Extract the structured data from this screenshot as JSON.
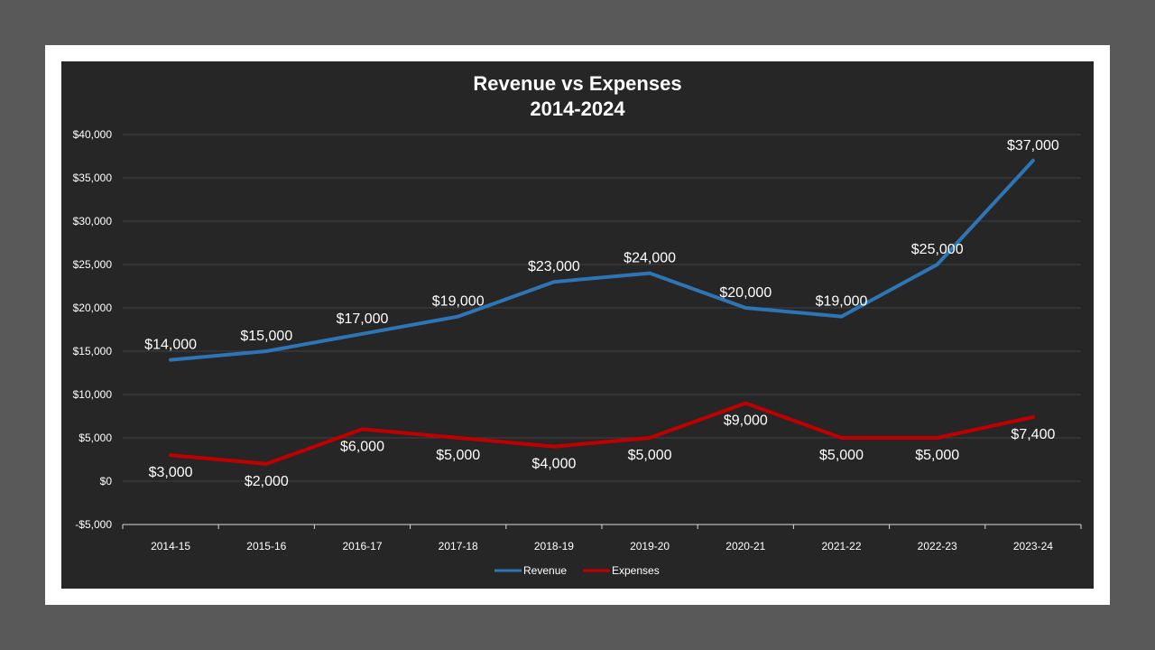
{
  "chart_data": {
    "type": "line",
    "title": [
      "Revenue vs Expenses",
      "2014-2024"
    ],
    "categories": [
      "2014-15",
      "2015-16",
      "2016-17",
      "2017-18",
      "2018-19",
      "2019-20",
      "2020-21",
      "2021-22",
      "2022-23",
      "2023-24"
    ],
    "series": [
      {
        "name": "Revenue",
        "color": "#2e75b6",
        "values": [
          14000,
          15000,
          17000,
          19000,
          23000,
          24000,
          20000,
          19000,
          25000,
          37000
        ],
        "labels": [
          "$14,000",
          "$15,000",
          "$17,000",
          "$19,000",
          "$23,000",
          "$24,000",
          "$20,000",
          "$19,000",
          "$25,000",
          "$37,000"
        ],
        "label_position": "above"
      },
      {
        "name": "Expenses",
        "color": "#c00000",
        "values": [
          3000,
          2000,
          6000,
          5000,
          4000,
          5000,
          9000,
          5000,
          5000,
          7400
        ],
        "labels": [
          "$3,000",
          "$2,000",
          "$6,000",
          "$5,000",
          "$4,000",
          "$5,000",
          "$9,000",
          "$5,000",
          "$5,000",
          "$7,400"
        ],
        "label_position": "below"
      }
    ],
    "ylim": [
      -5000,
      40000
    ],
    "yticks": [
      -5000,
      0,
      5000,
      10000,
      15000,
      20000,
      25000,
      30000,
      35000,
      40000
    ],
    "ytick_labels": [
      "-$5,000",
      "$0",
      "$5,000",
      "$10,000",
      "$15,000",
      "$20,000",
      "$25,000",
      "$30,000",
      "$35,000",
      "$40,000"
    ],
    "grid": true,
    "legend": "bottom",
    "background_color": "#262626",
    "grid_color": "#404040",
    "axis_color": "#d9d9d9"
  }
}
